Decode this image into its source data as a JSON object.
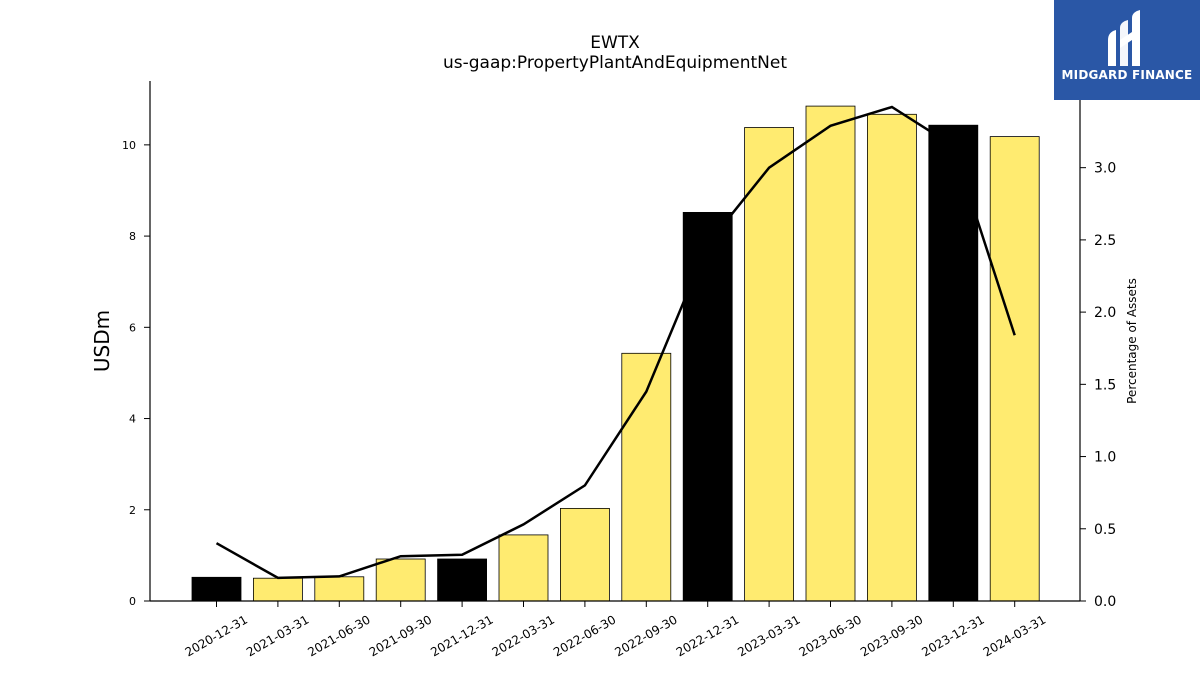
{
  "chart_data": {
    "type": "bar",
    "title": "EWTX",
    "subtitle": "us-gaap:PropertyPlantAndEquipmentNet",
    "ylabel": "USDm",
    "ylabel_right": "Percentage of Assets",
    "categories": [
      "2020-12-31",
      "2021-03-31",
      "2021-06-30",
      "2021-09-30",
      "2021-12-31",
      "2022-03-31",
      "2022-06-30",
      "2022-09-30",
      "2022-12-31",
      "2023-03-31",
      "2023-06-30",
      "2023-09-30",
      "2023-12-31",
      "2024-03-31"
    ],
    "series": [
      {
        "values": [
          0.52,
          0.5,
          0.53,
          0.92,
          0.92,
          1.45,
          2.03,
          5.43,
          8.52,
          10.38,
          10.85,
          10.67,
          10.43,
          10.18
        ]
      },
      {
        "axis": "right",
        "values": [
          0.4,
          0.16,
          0.17,
          0.31,
          0.32,
          0.53,
          0.8,
          1.45,
          2.47,
          3.0,
          3.29,
          3.42,
          3.15,
          1.84
        ]
      }
    ],
    "bar_highlight": [
      true,
      false,
      false,
      false,
      true,
      false,
      false,
      false,
      true,
      false,
      false,
      false,
      true,
      false
    ],
    "ylim": [
      0,
      11.4
    ],
    "ylim_right": [
      0,
      3.6
    ],
    "yticks": [
      "0",
      "2",
      "4",
      "6",
      "8",
      "10"
    ],
    "yticks_right": [
      "0.0",
      "0.5",
      "1.0",
      "1.5",
      "2.0",
      "2.5",
      "3.0"
    ],
    "colors": {
      "bar": "#ffeb70",
      "bar_highlight": "#000000",
      "line": "#000000",
      "edge": "#000000"
    }
  },
  "logo": {
    "text": "MIDGARD FINANCE",
    "color": "#2a57a6"
  }
}
